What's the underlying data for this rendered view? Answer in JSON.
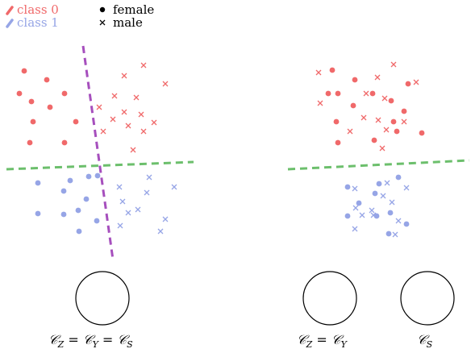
{
  "colors": {
    "class0": "#f0696a",
    "class1": "#96a5e6",
    "boundary_class": "#6cbf6c",
    "boundary_gender": "#a64fbd",
    "ink": "#000000"
  },
  "legend": {
    "class0_label": "class 0",
    "class1_label": "class 1",
    "female_label": "female",
    "male_label": "male"
  },
  "panels": {
    "left": {
      "caption_parts": [
        "𝒞",
        "Z",
        " = ",
        "𝒞",
        "Y",
        " = ",
        "𝒞",
        "S"
      ],
      "circles": 1
    },
    "right": {
      "caption_a_parts": [
        "𝒞",
        "Z",
        " = ",
        "𝒞",
        "Y"
      ],
      "caption_b_parts": [
        "𝒞",
        "S"
      ],
      "circles": 2
    }
  }
}
